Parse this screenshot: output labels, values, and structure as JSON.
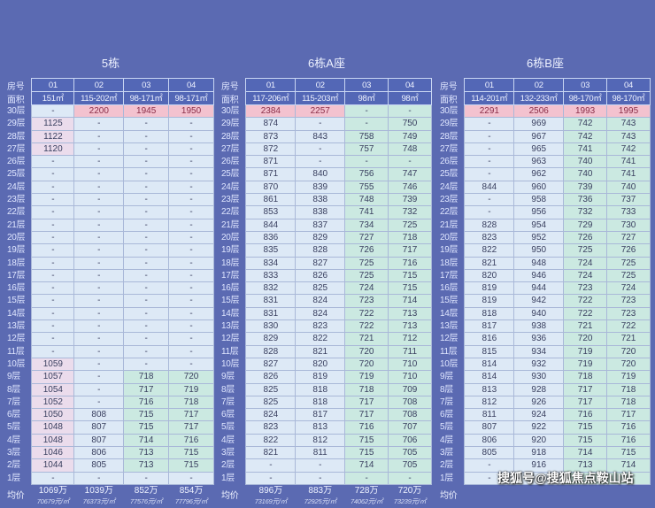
{
  "header_labels": {
    "room": "房号",
    "area": "面积",
    "avg": "均价"
  },
  "floors": [
    "30层",
    "29层",
    "28层",
    "27层",
    "26层",
    "25层",
    "24层",
    "23层",
    "22层",
    "21层",
    "20层",
    "19层",
    "18层",
    "17层",
    "16层",
    "15层",
    "14层",
    "13层",
    "12层",
    "11层",
    "10层",
    "9层",
    "8层",
    "7层",
    "6层",
    "5层",
    "4层",
    "3层",
    "2层",
    "1层"
  ],
  "colors": {
    "background": "#5b6ab2",
    "header": "#5367b6",
    "cell": "#dde9f6",
    "top_floor_highlight": "#f3c2cf",
    "green_tint": "#cbe9e1"
  },
  "buildings": [
    {
      "title": "5栋",
      "rooms": [
        "01",
        "02",
        "03",
        "04"
      ],
      "areas": [
        "151㎡",
        "115-202㎡",
        "98-171㎡",
        "98-171㎡"
      ],
      "tints": [
        "lpink",
        "none",
        "green",
        "green"
      ],
      "rows": [
        [
          "-",
          "2200",
          "1945",
          "1950"
        ],
        [
          "1125",
          "-",
          "-",
          "-"
        ],
        [
          "1122",
          "-",
          "-",
          "-"
        ],
        [
          "1120",
          "-",
          "-",
          "-"
        ],
        [
          "-",
          "-",
          "-",
          "-"
        ],
        [
          "-",
          "-",
          "-",
          "-"
        ],
        [
          "-",
          "-",
          "-",
          "-"
        ],
        [
          "-",
          "-",
          "-",
          "-"
        ],
        [
          "-",
          "-",
          "-",
          "-"
        ],
        [
          "-",
          "-",
          "-",
          "-"
        ],
        [
          "-",
          "-",
          "-",
          "-"
        ],
        [
          "-",
          "-",
          "-",
          "-"
        ],
        [
          "-",
          "-",
          "-",
          "-"
        ],
        [
          "-",
          "-",
          "-",
          "-"
        ],
        [
          "-",
          "-",
          "-",
          "-"
        ],
        [
          "-",
          "-",
          "-",
          "-"
        ],
        [
          "-",
          "-",
          "-",
          "-"
        ],
        [
          "-",
          "-",
          "-",
          "-"
        ],
        [
          "-",
          "-",
          "-",
          "-"
        ],
        [
          "-",
          "-",
          "-",
          "-"
        ],
        [
          "1059",
          "-",
          "-",
          "-"
        ],
        [
          "1057",
          "-",
          "718",
          "720"
        ],
        [
          "1054",
          "-",
          "717",
          "719"
        ],
        [
          "1052",
          "-",
          "716",
          "718"
        ],
        [
          "1050",
          "808",
          "715",
          "717"
        ],
        [
          "1048",
          "807",
          "715",
          "717"
        ],
        [
          "1048",
          "807",
          "714",
          "716"
        ],
        [
          "1046",
          "806",
          "713",
          "715"
        ],
        [
          "1044",
          "805",
          "713",
          "715"
        ],
        [
          "-",
          "-",
          "-",
          "-"
        ]
      ],
      "avg": [
        {
          "total": "1069万",
          "unit": "70679元/㎡"
        },
        {
          "total": "1039万",
          "unit": "76373元/㎡"
        },
        {
          "total": "852万",
          "unit": "77576元/㎡"
        },
        {
          "total": "854万",
          "unit": "77796元/㎡"
        }
      ]
    },
    {
      "title": "6栋A座",
      "rooms": [
        "01",
        "02",
        "03",
        "04"
      ],
      "areas": [
        "117-206㎡",
        "115-203㎡",
        "98㎡",
        "98㎡"
      ],
      "tints": [
        "none",
        "none",
        "green",
        "green"
      ],
      "rows": [
        [
          "2384",
          "2257",
          "-",
          "-"
        ],
        [
          "874",
          "-",
          "-",
          "750"
        ],
        [
          "873",
          "843",
          "758",
          "749"
        ],
        [
          "872",
          "-",
          "757",
          "748"
        ],
        [
          "871",
          "-",
          "-",
          "-"
        ],
        [
          "871",
          "840",
          "756",
          "747"
        ],
        [
          "870",
          "839",
          "755",
          "746"
        ],
        [
          "861",
          "838",
          "748",
          "739"
        ],
        [
          "853",
          "838",
          "741",
          "732"
        ],
        [
          "844",
          "837",
          "734",
          "725"
        ],
        [
          "836",
          "829",
          "727",
          "718"
        ],
        [
          "835",
          "828",
          "726",
          "717"
        ],
        [
          "834",
          "827",
          "725",
          "716"
        ],
        [
          "833",
          "826",
          "725",
          "715"
        ],
        [
          "832",
          "825",
          "724",
          "715"
        ],
        [
          "831",
          "824",
          "723",
          "714"
        ],
        [
          "831",
          "824",
          "722",
          "713"
        ],
        [
          "830",
          "823",
          "722",
          "713"
        ],
        [
          "829",
          "822",
          "721",
          "712"
        ],
        [
          "828",
          "821",
          "720",
          "711"
        ],
        [
          "827",
          "820",
          "720",
          "710"
        ],
        [
          "826",
          "819",
          "719",
          "710"
        ],
        [
          "825",
          "818",
          "718",
          "709"
        ],
        [
          "825",
          "818",
          "717",
          "708"
        ],
        [
          "824",
          "817",
          "717",
          "708"
        ],
        [
          "823",
          "813",
          "716",
          "707"
        ],
        [
          "822",
          "812",
          "715",
          "706"
        ],
        [
          "821",
          "811",
          "715",
          "705"
        ],
        [
          "-",
          "-",
          "714",
          "705"
        ],
        [
          "-",
          "-",
          "-",
          "-"
        ]
      ],
      "avg": [
        {
          "total": "896万",
          "unit": "73169元/㎡"
        },
        {
          "total": "883万",
          "unit": "72925元/㎡"
        },
        {
          "total": "728万",
          "unit": "74062元/㎡"
        },
        {
          "total": "720万",
          "unit": "73239元/㎡"
        }
      ]
    },
    {
      "title": "6栋B座",
      "rooms": [
        "01",
        "02",
        "03",
        "04"
      ],
      "areas": [
        "114-201㎡",
        "132-233㎡",
        "98-170㎡",
        "98-170㎡"
      ],
      "tints": [
        "none",
        "none",
        "green",
        "green"
      ],
      "rows": [
        [
          "2291",
          "2506",
          "1993",
          "1995"
        ],
        [
          "-",
          "969",
          "742",
          "743"
        ],
        [
          "-",
          "967",
          "742",
          "743"
        ],
        [
          "-",
          "965",
          "741",
          "742"
        ],
        [
          "-",
          "963",
          "740",
          "741"
        ],
        [
          "-",
          "962",
          "740",
          "741"
        ],
        [
          "844",
          "960",
          "739",
          "740"
        ],
        [
          "-",
          "958",
          "736",
          "737"
        ],
        [
          "-",
          "956",
          "732",
          "733"
        ],
        [
          "828",
          "954",
          "729",
          "730"
        ],
        [
          "823",
          "952",
          "726",
          "727"
        ],
        [
          "822",
          "950",
          "725",
          "726"
        ],
        [
          "821",
          "948",
          "724",
          "725"
        ],
        [
          "820",
          "946",
          "724",
          "725"
        ],
        [
          "819",
          "944",
          "723",
          "724"
        ],
        [
          "819",
          "942",
          "722",
          "723"
        ],
        [
          "818",
          "940",
          "722",
          "723"
        ],
        [
          "817",
          "938",
          "721",
          "722"
        ],
        [
          "816",
          "936",
          "720",
          "721"
        ],
        [
          "815",
          "934",
          "719",
          "720"
        ],
        [
          "814",
          "932",
          "719",
          "720"
        ],
        [
          "814",
          "930",
          "718",
          "719"
        ],
        [
          "813",
          "928",
          "717",
          "718"
        ],
        [
          "812",
          "926",
          "717",
          "718"
        ],
        [
          "811",
          "924",
          "716",
          "717"
        ],
        [
          "807",
          "922",
          "715",
          "716"
        ],
        [
          "806",
          "920",
          "715",
          "716"
        ],
        [
          "805",
          "918",
          "714",
          "715"
        ],
        [
          "-",
          "916",
          "713",
          "714"
        ],
        [
          "-",
          "-",
          "-",
          "-"
        ]
      ],
      "avg": [
        {
          "total": "",
          "unit": ""
        },
        {
          "total": "",
          "unit": ""
        },
        {
          "total": "",
          "unit": ""
        },
        {
          "total": "",
          "unit": ""
        }
      ]
    }
  ],
  "watermark": "搜狐号@搜狐焦点鞍山站"
}
